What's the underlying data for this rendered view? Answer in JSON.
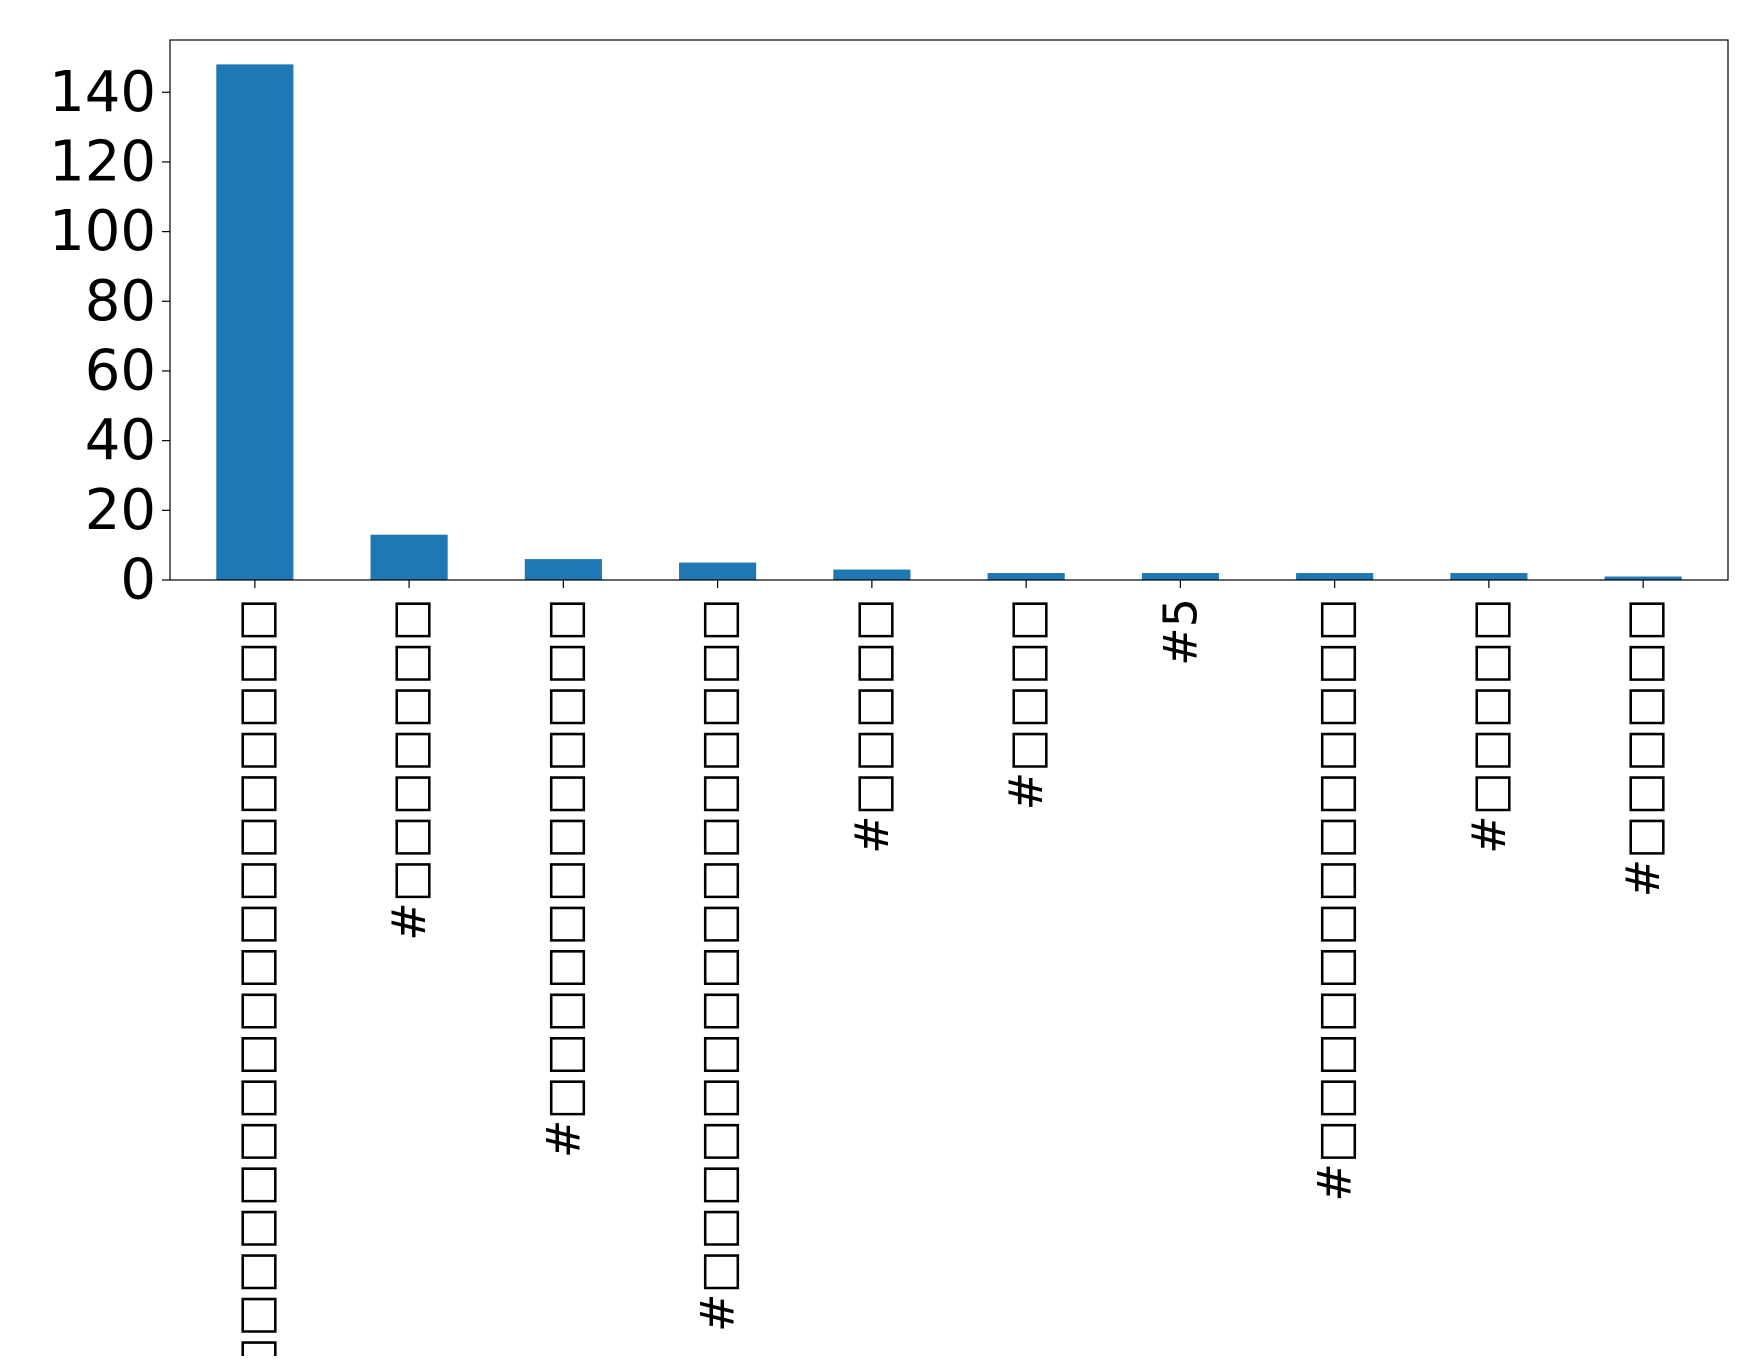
{
  "chart_data": {
    "type": "bar",
    "title": "",
    "xlabel": "",
    "ylabel": "",
    "categories": [
      "#□□□□□□□□□□□□□□□□□□",
      "#□□□□□□□",
      "#□□□□□□□□□□□□",
      "#□□□□□□□□□□□□□□□□",
      "#□□□□□",
      "#□□□□",
      "#5",
      "#□□□□□□□□□□□□□",
      "#□□□□□",
      "#□□□□□□"
    ],
    "values": [
      148,
      13,
      6,
      5,
      3,
      2,
      2,
      2,
      2,
      1
    ],
    "ylim": [
      0,
      155
    ],
    "yticks": [
      0,
      20,
      40,
      60,
      80,
      100,
      120,
      140
    ],
    "ytick_labels": [
      "0",
      "20",
      "40",
      "60",
      "80",
      "100",
      "120",
      "140"
    ],
    "grid": false,
    "legend": "none",
    "bar_color": "#1f77b4"
  }
}
